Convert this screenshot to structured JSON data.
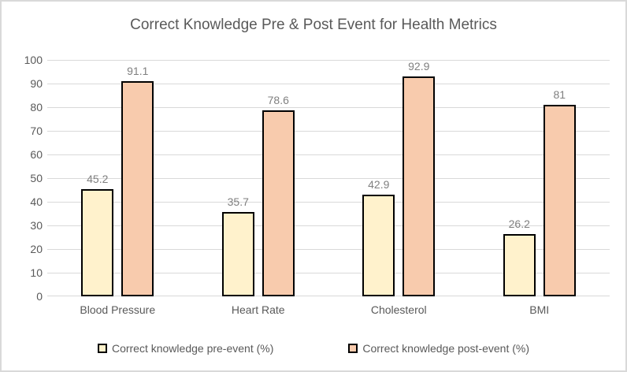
{
  "chart": {
    "background": "#FFFFFF",
    "frame_border_color": "#D9D9D9"
  },
  "chart_data": {
    "type": "bar",
    "title": "Correct Knowledge Pre & Post Event for Health Metrics",
    "categories": [
      "Blood Pressure",
      "Heart Rate",
      "Cholesterol",
      "BMI"
    ],
    "series": [
      {
        "name": "Correct knowledge pre-event (%)",
        "values": [
          45.2,
          35.7,
          42.9,
          26.2
        ],
        "fill_color": "#FFF2CC",
        "border_color": "#000000"
      },
      {
        "name": "Correct knowledge post-event (%)",
        "values": [
          91.1,
          78.6,
          92.9,
          81
        ],
        "fill_color": "#F8CBAD",
        "border_color": "#000000"
      }
    ],
    "data_labels_visible": true,
    "y_axis": {
      "min": 0,
      "max": 100,
      "tick_step": 10,
      "tick_labels": [
        "0",
        "10",
        "20",
        "30",
        "40",
        "50",
        "60",
        "70",
        "80",
        "90",
        "100"
      ]
    },
    "grid": true,
    "legend_position": "bottom",
    "xlabel": "",
    "ylabel": "",
    "styles": {
      "title_color": "#595959",
      "axis_label_color": "#595959",
      "data_label_color": "#7F7F7F",
      "gridline_color": "#D9D9D9",
      "legend_text_color": "#595959"
    }
  }
}
